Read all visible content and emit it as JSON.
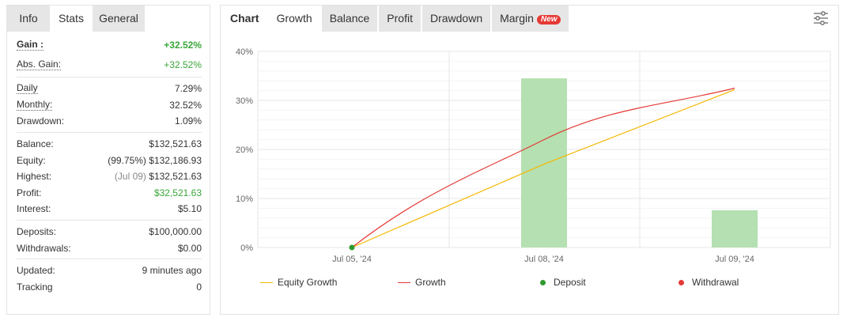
{
  "left": {
    "tabs": [
      {
        "label": "Info"
      },
      {
        "label": "Stats"
      },
      {
        "label": "General"
      }
    ],
    "groups": [
      [
        {
          "label": "Gain :",
          "value": "+32.52%"
        },
        {
          "label": "Abs. Gain:",
          "value": "+32.52%"
        }
      ],
      [
        {
          "label": "Daily",
          "value": "7.29%"
        },
        {
          "label": "Monthly:",
          "value": "32.52%"
        },
        {
          "label": "Drawdown:",
          "value": "1.09%"
        }
      ],
      [
        {
          "label": "Balance:",
          "value": "$132,521.63"
        },
        {
          "label": "Equity:",
          "prefix": "(99.75%)",
          "value": "$132,186.93"
        },
        {
          "label": "Highest:",
          "prefix": "(Jul 09)",
          "value": "$132,521.63"
        },
        {
          "label": "Profit:",
          "value": "$32,521.63"
        },
        {
          "label": "Interest:",
          "value": "$5.10"
        }
      ],
      [
        {
          "label": "Deposits:",
          "value": "$100,000.00"
        },
        {
          "label": "Withdrawals:",
          "value": "$0.00"
        }
      ],
      [
        {
          "label": "Updated:",
          "value": "9 minutes ago"
        },
        {
          "label": "Tracking",
          "value": "0"
        }
      ]
    ]
  },
  "right": {
    "tabs": [
      {
        "label": "Chart"
      },
      {
        "label": "Growth"
      },
      {
        "label": "Balance"
      },
      {
        "label": "Profit"
      },
      {
        "label": "Drawdown"
      },
      {
        "label": "Margin",
        "badge": "New"
      }
    ],
    "settings_icon": "sliders-icon"
  },
  "chart_data": {
    "type": "line",
    "title": "",
    "xlabel": "",
    "ylabel": "",
    "categories": [
      "Jul 05, '24",
      "Jul 08, '24",
      "Jul 09, '24"
    ],
    "ylim": [
      0,
      40
    ],
    "yticks": [
      "0%",
      "10%",
      "20%",
      "30%",
      "40%"
    ],
    "series": [
      {
        "name": "Equity Growth",
        "type": "line",
        "color": "#f5b800",
        "values": [
          0,
          17,
          32.2
        ]
      },
      {
        "name": "Growth",
        "type": "line",
        "color": "#e53935",
        "values": [
          0,
          22,
          32.5
        ]
      },
      {
        "name": "Deposit",
        "type": "bar",
        "color": "#b5e0b1",
        "values": [
          null,
          34.5,
          7.6
        ]
      },
      {
        "name": "Withdrawal",
        "type": "marker",
        "color": "#e53935",
        "values": [
          null,
          null,
          null
        ]
      }
    ],
    "deposit_marker": {
      "x": "Jul 05, '24",
      "y": 0,
      "color": "#2e9a2e"
    },
    "legend": [
      {
        "label": "Equity Growth",
        "kind": "line",
        "color": "#f5b800"
      },
      {
        "label": "Growth",
        "kind": "line",
        "color": "#e53935"
      },
      {
        "label": "Deposit",
        "kind": "dot",
        "color": "#2e9a2e"
      },
      {
        "label": "Withdrawal",
        "kind": "dot",
        "color": "#e53935"
      }
    ],
    "grid": true,
    "legend_position": "bottom"
  }
}
